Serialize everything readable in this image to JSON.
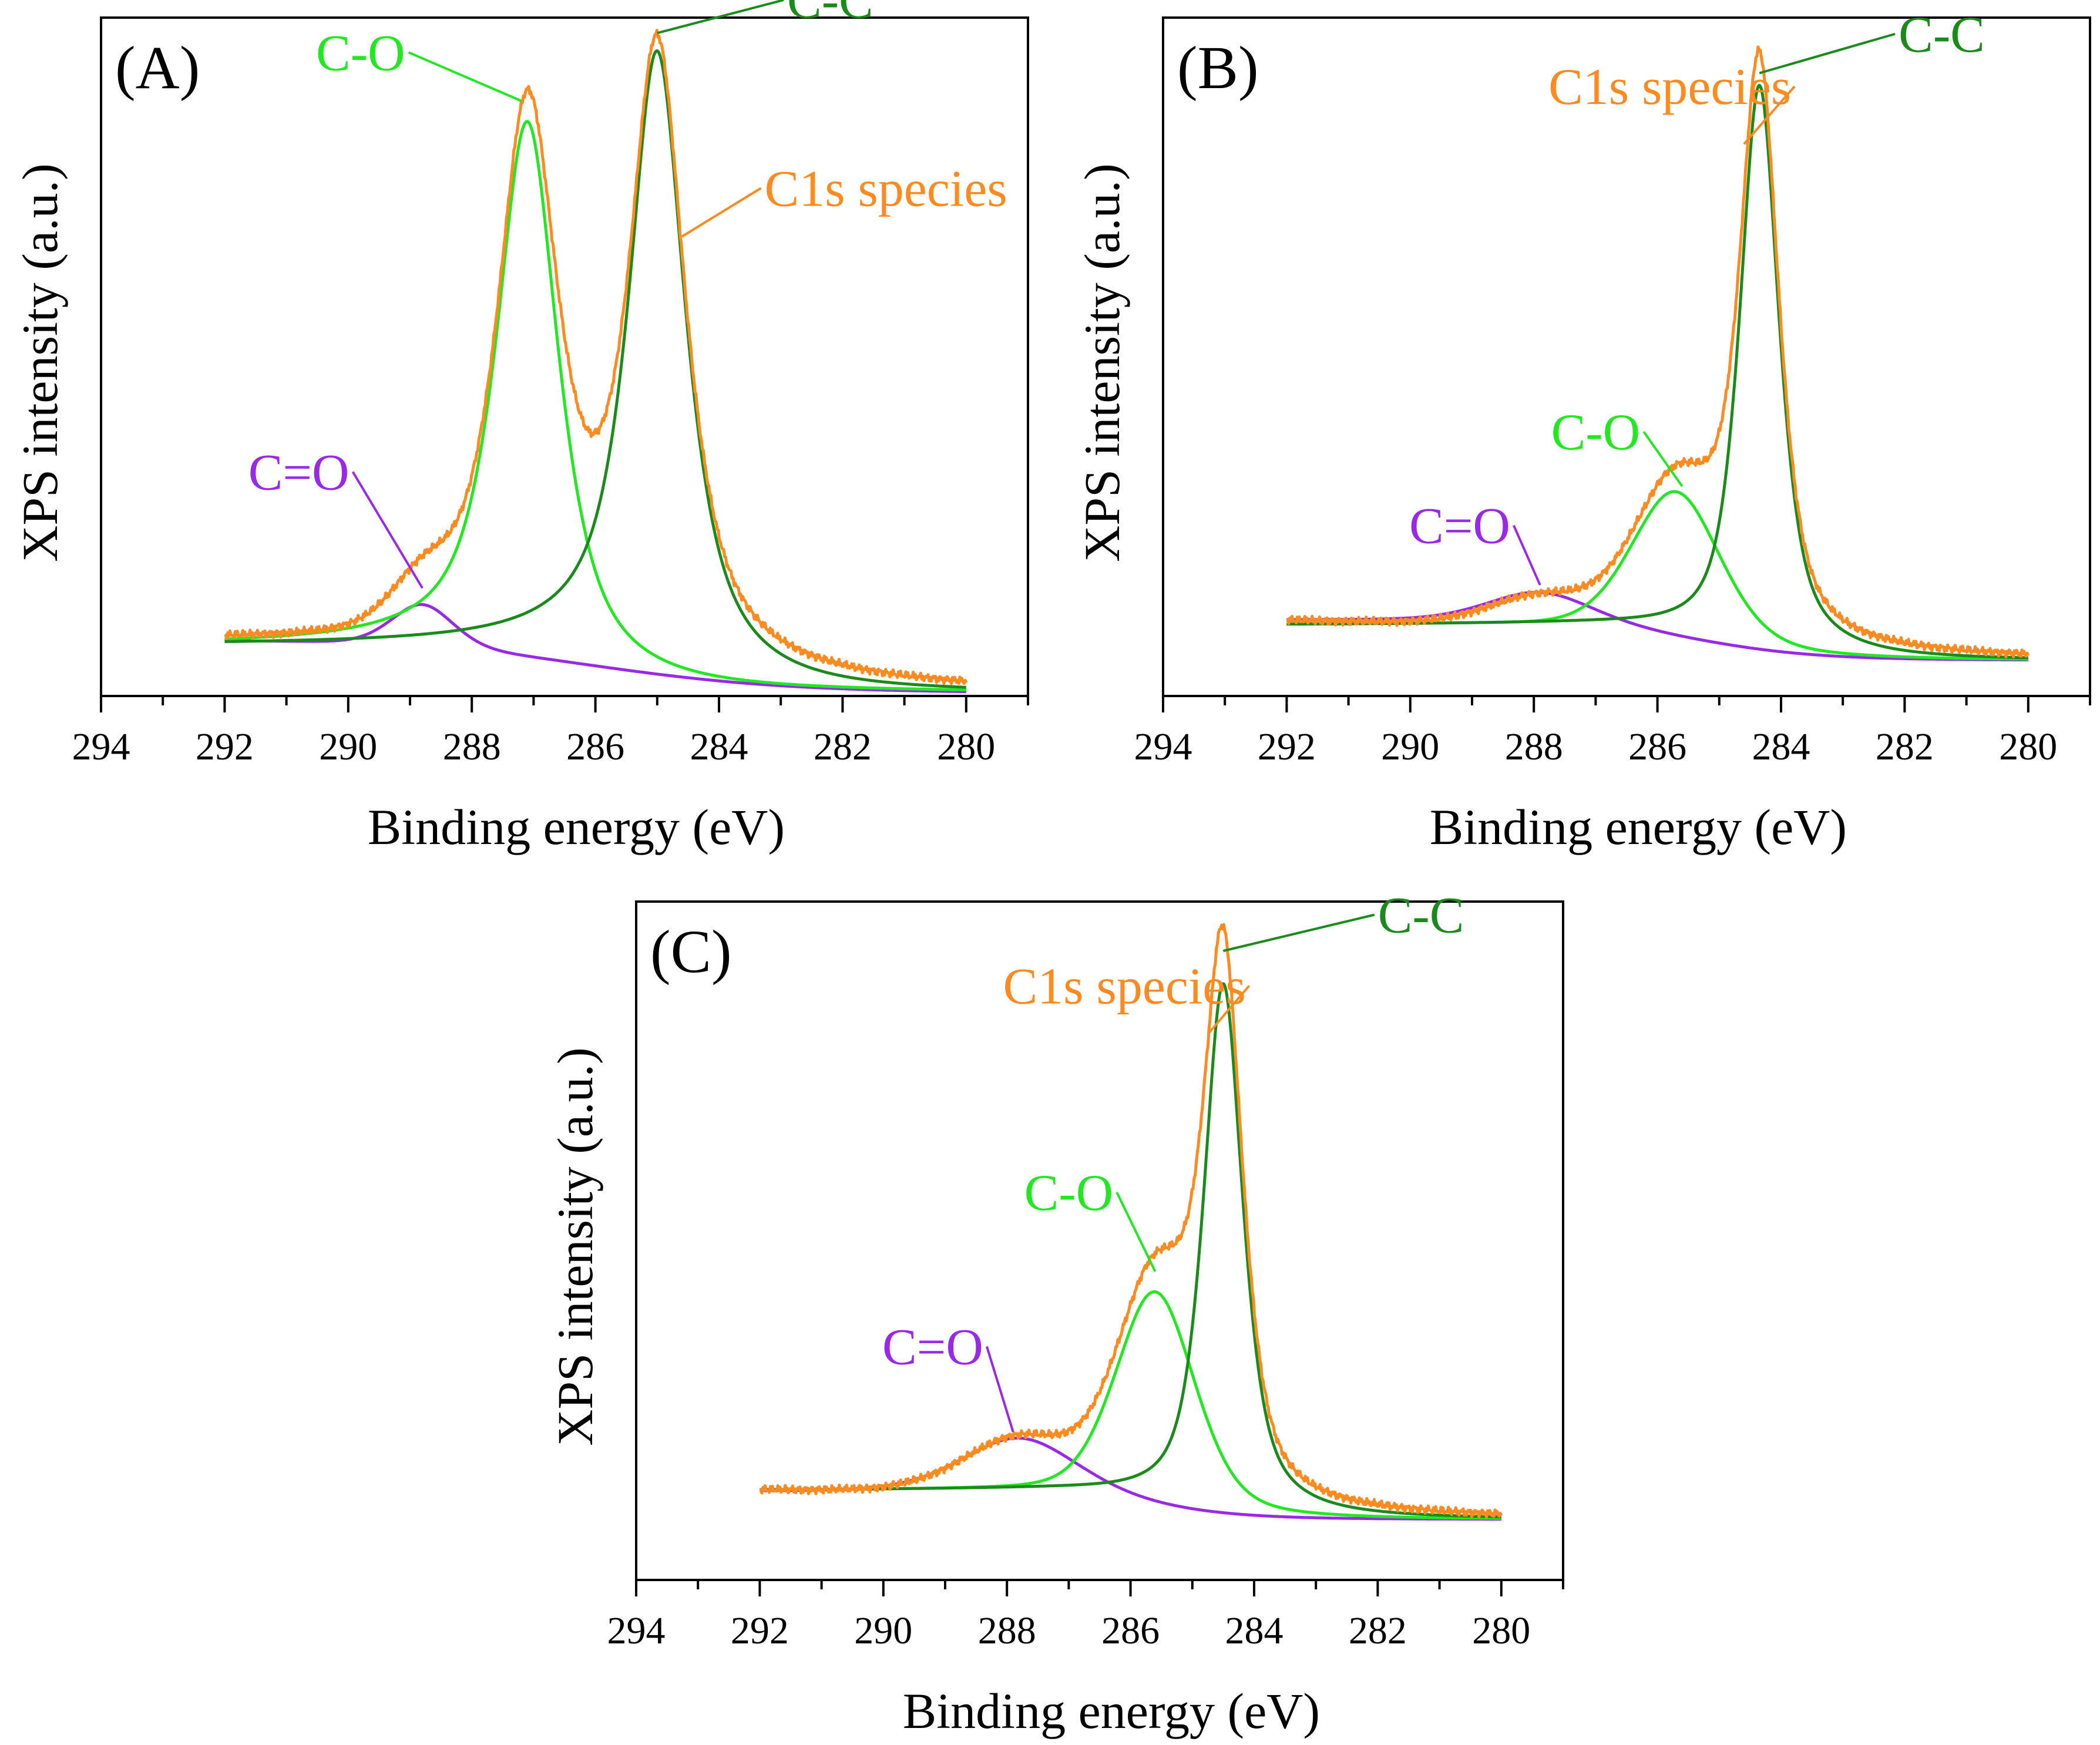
{
  "figure": {
    "background": "#ffffff",
    "colors": {
      "c1s": "#ff8a1f",
      "cc": "#1a8a1a",
      "co": "#22e822",
      "coo": "#9a28e8",
      "axis": "#000000"
    }
  },
  "chart_data": [
    {
      "panel_label": "(A)",
      "type": "line",
      "xlabel": "Binding energy (eV)",
      "ylabel": "XPS intensity (a.u.)",
      "xlim": [
        294,
        279
      ],
      "x_reversed": true,
      "ylim": [
        0,
        1.1
      ],
      "xticks": [
        "294",
        "292",
        "290",
        "288",
        "286",
        "284",
        "282",
        "280"
      ],
      "x_range": [
        292,
        280
      ],
      "series": [
        {
          "name": "C1s species",
          "key": "c1s",
          "color": "#ff8a1f",
          "kind": "sum",
          "background": {
            "start": 0.096,
            "end": 0.005,
            "center": 287.5,
            "width": 2.5
          },
          "components": [
            "C-C",
            "C-O",
            "C=O"
          ]
        },
        {
          "name": "C-C",
          "key": "cc",
          "color": "#1a8a1a",
          "kind": "peak",
          "center": 285.0,
          "height": 0.99,
          "width": 0.55,
          "eta": 0.85,
          "baseline": {
            "start": 0.083,
            "end": 0.004,
            "center": 284.6,
            "width": 0.6
          }
        },
        {
          "name": "C-O",
          "key": "co",
          "color": "#22e822",
          "kind": "peak",
          "center": 287.1,
          "height": 0.88,
          "width": 0.6,
          "eta": 0.8,
          "baseline": {
            "start": 0.082,
            "end": 0.005,
            "center": 286.8,
            "width": 0.7
          }
        },
        {
          "name": "C=O",
          "key": "coo",
          "color": "#9a28e8",
          "kind": "peak",
          "center": 288.8,
          "height": 0.07,
          "width": 0.6,
          "eta": 0.3,
          "baseline": {
            "start": 0.091,
            "end": 0.005,
            "center": 286.0,
            "width": 1.6
          }
        }
      ],
      "annotations": [
        {
          "text": "C-C",
          "key": "cc",
          "target_x": 285.0,
          "target_y": 1.075,
          "text_x": 282.2,
          "text_y": 1.1
        },
        {
          "text": "C-O",
          "key": "co",
          "target_x": 287.2,
          "target_y": 0.965,
          "text_x": 289.8,
          "text_y": 1.015
        },
        {
          "text": "C1s species",
          "key": "c1s",
          "target_x": 284.6,
          "target_y": 0.745,
          "text_x": 281.3,
          "text_y": 0.795
        },
        {
          "text": "C=O",
          "key": "coo",
          "target_x": 288.8,
          "target_y": 0.175,
          "text_x": 290.8,
          "text_y": 0.335
        }
      ]
    },
    {
      "panel_label": "(B)",
      "type": "line",
      "xlabel": "Binding energy (eV)",
      "ylabel": "XPS intensity (a.u.)",
      "xlim": [
        294,
        279
      ],
      "x_reversed": true,
      "ylim": [
        0,
        1.1
      ],
      "xticks": [
        "294",
        "292",
        "290",
        "288",
        "286",
        "284",
        "282",
        "280"
      ],
      "x_range": [
        292,
        280
      ],
      "series": [
        {
          "name": "C1s species",
          "key": "c1s",
          "color": "#ff8a1f",
          "kind": "sum",
          "background": {
            "start": 0.128,
            "end": 0.058,
            "center": 287.0,
            "width": 2.5
          },
          "components": [
            "C-C",
            "C-O",
            "C=O"
          ]
        },
        {
          "name": "C-C",
          "key": "cc",
          "color": "#1a8a1a",
          "kind": "peak",
          "center": 284.35,
          "height": 0.92,
          "width": 0.38,
          "eta": 0.7,
          "baseline": {
            "start": 0.115,
            "end": 0.057,
            "center": 285.2,
            "width": 0.7
          }
        },
        {
          "name": "C-O",
          "key": "co",
          "color": "#22e822",
          "kind": "peak",
          "center": 285.7,
          "height": 0.24,
          "width": 0.85,
          "eta": 0.3,
          "baseline": {
            "start": 0.116,
            "end": 0.058,
            "center": 285.4,
            "width": 1.0
          }
        },
        {
          "name": "C=O",
          "key": "coo",
          "color": "#9a28e8",
          "kind": "peak",
          "center": 287.9,
          "height": 0.05,
          "width": 1.0,
          "eta": 0.3,
          "baseline": {
            "start": 0.123,
            "end": 0.058,
            "center": 285.4,
            "width": 1.0
          }
        }
      ],
      "annotations": [
        {
          "text": "C-C",
          "key": "cc",
          "target_x": 284.35,
          "target_y": 1.01,
          "text_x": 281.4,
          "text_y": 1.045
        },
        {
          "text": "C1s species",
          "key": "c1s",
          "target_x": 284.6,
          "target_y": 0.895,
          "text_x": 285.8,
          "text_y": 0.96
        },
        {
          "text": "C-O",
          "key": "co",
          "target_x": 285.6,
          "target_y": 0.34,
          "text_x": 287.0,
          "text_y": 0.4
        },
        {
          "text": "C=O",
          "key": "coo",
          "target_x": 287.9,
          "target_y": 0.18,
          "text_x": 289.2,
          "text_y": 0.248
        }
      ]
    },
    {
      "panel_label": "(C)",
      "type": "line",
      "xlabel": "Binding energy (eV)",
      "ylabel": "XPS intensity (a.u.)",
      "xlim": [
        294,
        279
      ],
      "x_reversed": true,
      "ylim": [
        0,
        1.1
      ],
      "xticks": [
        "294",
        "292",
        "290",
        "288",
        "286",
        "284",
        "282",
        "280"
      ],
      "x_range": [
        292,
        280
      ],
      "series": [
        {
          "name": "C1s species",
          "key": "c1s",
          "color": "#ff8a1f",
          "kind": "sum",
          "background": {
            "start": 0.148,
            "end": 0.098,
            "center": 287.0,
            "width": 2.5
          },
          "components": [
            "C-C",
            "C-O",
            "C=O"
          ]
        },
        {
          "name": "C-C",
          "key": "cc",
          "color": "#1a8a1a",
          "kind": "peak",
          "center": 284.5,
          "height": 0.86,
          "width": 0.38,
          "eta": 0.7,
          "baseline": {
            "start": 0.145,
            "end": 0.098,
            "center": 285.5,
            "width": 0.7
          }
        },
        {
          "name": "C-O",
          "key": "co",
          "color": "#22e822",
          "kind": "peak",
          "center": 285.6,
          "height": 0.34,
          "width": 0.75,
          "eta": 0.3,
          "baseline": {
            "start": 0.145,
            "end": 0.098,
            "center": 285.2,
            "width": 0.8
          }
        },
        {
          "name": "C=O",
          "key": "coo",
          "color": "#9a28e8",
          "kind": "peak",
          "center": 287.8,
          "height": 0.09,
          "width": 1.1,
          "eta": 0.3,
          "baseline": {
            "start": 0.143,
            "end": 0.098,
            "center": 285.7,
            "width": 0.8
          }
        }
      ],
      "annotations": [
        {
          "text": "C-C",
          "key": "cc",
          "target_x": 284.5,
          "target_y": 1.02,
          "text_x": 281.3,
          "text_y": 1.05
        },
        {
          "text": "C1s species",
          "key": "c1s",
          "target_x": 284.75,
          "target_y": 0.885,
          "text_x": 286.1,
          "text_y": 0.935
        },
        {
          "text": "C-O",
          "key": "co",
          "target_x": 285.6,
          "target_y": 0.5,
          "text_x": 287.0,
          "text_y": 0.6
        },
        {
          "text": "C=O",
          "key": "coo",
          "target_x": 287.9,
          "target_y": 0.24,
          "text_x": 289.2,
          "text_y": 0.35
        }
      ]
    }
  ]
}
